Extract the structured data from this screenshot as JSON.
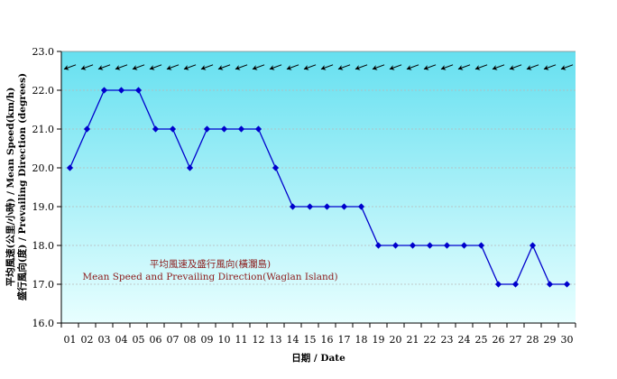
{
  "chart_data": {
    "type": "line",
    "title": "",
    "xlabel": "日期 / Date",
    "ylabel_lines": [
      "平均風速(公里/小時) / Mean Speed(km/h)",
      "盛行風向(度) / Prevailing Direction (degrees)"
    ],
    "annotation_lines": [
      "平均風速及盛行風向(橫瀾島)",
      "Mean Speed and Prevailing Direction(Waglan Island)"
    ],
    "ylim": [
      16.0,
      23.0
    ],
    "yticks": [
      "16.0",
      "17.0",
      "18.0",
      "19.0",
      "20.0",
      "21.0",
      "22.0",
      "23.0"
    ],
    "categories": [
      "01",
      "02",
      "03",
      "04",
      "05",
      "06",
      "07",
      "08",
      "09",
      "10",
      "11",
      "12",
      "13",
      "14",
      "15",
      "16",
      "17",
      "18",
      "19",
      "20",
      "21",
      "22",
      "23",
      "24",
      "25",
      "26",
      "27",
      "28",
      "29",
      "30"
    ],
    "series": [
      {
        "name": "",
        "values": [
          20,
          21,
          22,
          22,
          22,
          21,
          21,
          20,
          21,
          21,
          21,
          21,
          20,
          19,
          19,
          19,
          19,
          19,
          18,
          18,
          18,
          18,
          18,
          18,
          18,
          17,
          17,
          18,
          17,
          17
        ]
      }
    ],
    "prevailing_direction": {
      "values_deg": [
        70,
        70,
        70,
        70,
        70,
        70,
        70,
        70,
        70,
        70,
        70,
        70,
        70,
        70,
        70,
        70,
        70,
        70,
        70,
        70,
        70,
        70,
        70,
        70,
        70,
        70,
        70,
        70,
        70,
        70
      ],
      "display_level": 22.6
    },
    "grid": true,
    "legend": "none"
  },
  "colors": {
    "line": "#0000cc",
    "marker": "#0000cc",
    "plot_bg_top": "#e8ffff",
    "plot_bg_bottom": "#66e0f0",
    "gridline": "#b8b8b8",
    "annotation": "#8b1a1a",
    "arrow": "#000000"
  }
}
